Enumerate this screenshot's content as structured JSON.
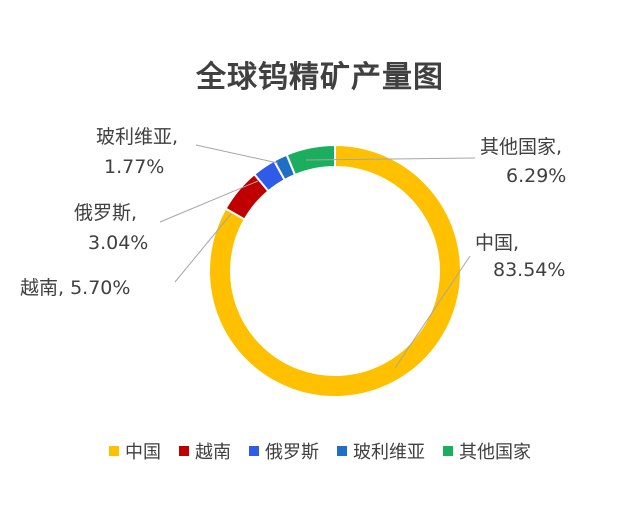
{
  "chart_data": {
    "type": "pie",
    "title": "全球钨精矿产量图",
    "donut": true,
    "categories": [
      "中国",
      "越南",
      "俄罗斯",
      "玻利维亚",
      "其他国家"
    ],
    "values": [
      83.54,
      5.7,
      3.04,
      1.77,
      6.29
    ],
    "labels": [
      "中国,",
      "越南, 5.70%",
      "俄罗斯,",
      "玻利维亚,",
      "其他国家,"
    ],
    "value_labels": [
      "83.54%",
      "",
      "3.04%",
      "1.77%",
      "6.29%"
    ],
    "colors": [
      "#FFC000",
      "#C00000",
      "#2E5BE8",
      "#1F6FC5",
      "#1AAE5E"
    ],
    "legend_position": "bottom"
  }
}
